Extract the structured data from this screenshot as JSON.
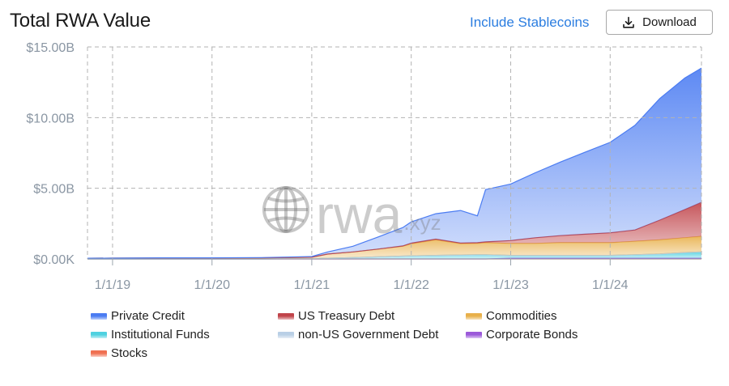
{
  "header": {
    "title": "Total RWA Value",
    "include_stablecoins_label": "Include Stablecoins",
    "download_label": "Download"
  },
  "watermark": {
    "text": "rwa",
    "suffix": ".xyz"
  },
  "chart_data": {
    "type": "area",
    "stacked": true,
    "title": "Total RWA Value",
    "xlabel": "",
    "ylabel": "",
    "x_start": "2018-10-01",
    "x_end": "2024-12-01",
    "x_ticks": [
      "1/1/19",
      "1/1/20",
      "1/1/21",
      "1/1/22",
      "1/1/23",
      "1/1/24"
    ],
    "y_ticks": [
      "$0.00K",
      "$5.00B",
      "$10.00B",
      "$15.00B"
    ],
    "ylim": [
      0,
      15
    ],
    "y_unit": "billions USD",
    "grid": true,
    "legend_position": "bottom",
    "x": [
      "2018-10",
      "2019-01",
      "2019-07",
      "2020-01",
      "2020-07",
      "2021-01",
      "2021-03",
      "2021-06",
      "2021-09",
      "2021-12",
      "2022-01",
      "2022-04",
      "2022-07",
      "2022-09",
      "2022-10",
      "2023-01",
      "2023-04",
      "2023-07",
      "2023-10",
      "2024-01",
      "2024-04",
      "2024-07",
      "2024-10",
      "2024-12"
    ],
    "series": [
      {
        "name": "Stocks",
        "color": "#f07052",
        "values": [
          0,
          0,
          0,
          0,
          0,
          0,
          0,
          0,
          0,
          0,
          0,
          0,
          0,
          0,
          0,
          0,
          0,
          0,
          0,
          0,
          0,
          0,
          0,
          0
        ]
      },
      {
        "name": "Corporate Bonds",
        "color": "#9b59d9",
        "values": [
          0,
          0,
          0,
          0,
          0,
          0,
          0,
          0,
          0,
          0,
          0,
          0,
          0,
          0,
          0,
          0.05,
          0.05,
          0.05,
          0.05,
          0.05,
          0.05,
          0.05,
          0.05,
          0.05
        ]
      },
      {
        "name": "Institutional Funds",
        "color": "#4fd1e0",
        "values": [
          0,
          0,
          0,
          0,
          0,
          0.02,
          0.05,
          0.1,
          0.15,
          0.2,
          0.22,
          0.25,
          0.28,
          0.3,
          0.3,
          0.2,
          0.2,
          0.2,
          0.2,
          0.2,
          0.25,
          0.3,
          0.4,
          0.45
        ]
      },
      {
        "name": "non-US Government Debt",
        "color": "#b9cfe6",
        "values": [
          0,
          0,
          0,
          0,
          0,
          0,
          0,
          0,
          0,
          0,
          0,
          0,
          0,
          0,
          0,
          0,
          0,
          0,
          0,
          0,
          0,
          0,
          0,
          0
        ]
      },
      {
        "name": "Commodities",
        "color": "#e8b04a",
        "values": [
          0.05,
          0.06,
          0.07,
          0.07,
          0.08,
          0.1,
          0.3,
          0.4,
          0.55,
          0.7,
          0.85,
          1.1,
          0.8,
          0.8,
          0.85,
          0.85,
          0.85,
          0.9,
          0.9,
          0.9,
          0.95,
          1.0,
          1.05,
          1.1
        ]
      },
      {
        "name": "US Treasury Debt",
        "color": "#c0444a",
        "values": [
          0,
          0,
          0,
          0,
          0,
          0,
          0,
          0,
          0,
          0.02,
          0.05,
          0.05,
          0.05,
          0.05,
          0.06,
          0.2,
          0.4,
          0.5,
          0.6,
          0.7,
          0.8,
          1.4,
          2.0,
          2.4
        ]
      },
      {
        "name": "Private Credit",
        "color": "#4b7cf2",
        "values": [
          0,
          0,
          0.01,
          0.01,
          0.02,
          0.05,
          0.15,
          0.4,
          0.85,
          1.3,
          1.5,
          1.8,
          2.3,
          1.9,
          3.7,
          4.0,
          4.6,
          5.2,
          5.8,
          6.4,
          7.4,
          8.6,
          9.3,
          9.5
        ]
      }
    ]
  },
  "legend": {
    "items": [
      {
        "label": "Private Credit",
        "color": "#4b7cf2"
      },
      {
        "label": "US Treasury Debt",
        "color": "#c0444a"
      },
      {
        "label": "Commodities",
        "color": "#e8b04a"
      },
      {
        "label": "Institutional Funds",
        "color": "#4fd1e0"
      },
      {
        "label": "non-US Government Debt",
        "color": "#b9cfe6"
      },
      {
        "label": "Corporate Bonds",
        "color": "#9b59d9"
      },
      {
        "label": "Stocks",
        "color": "#f07052"
      }
    ]
  },
  "icons": {
    "download": "download-icon",
    "watermark_globe": "globe-icon"
  }
}
